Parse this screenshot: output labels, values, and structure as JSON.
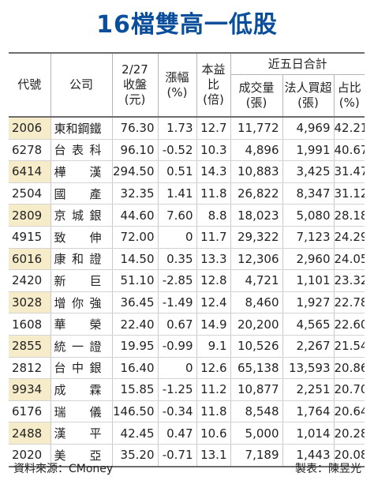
{
  "title": "16檔雙高一低股",
  "header": {
    "code": "代號",
    "company": "公司",
    "close_l1": "2/27",
    "close_l2": "收盤",
    "close_l3": "(元)",
    "change_l1": "漲幅",
    "change_l2": "(%)",
    "pe_l1": "本益",
    "pe_l2": "比",
    "pe_l3": "(倍)",
    "group": "近五日合計",
    "volume_l1": "成交量",
    "volume_l2": "(張)",
    "inst_l1": "法人買超",
    "inst_l2": "(張)",
    "ratio_l1": "占比",
    "ratio_l2": "(%)"
  },
  "rows": [
    {
      "code": "2006",
      "name": "東和鋼鐵",
      "close": "76.30",
      "change": "1.73",
      "pe": "12.7",
      "volume": "11,772",
      "inst": "4,969",
      "ratio": "42.21"
    },
    {
      "code": "6278",
      "name": "台表科",
      "close": "96.10",
      "change": "-0.52",
      "pe": "10.3",
      "volume": "4,896",
      "inst": "1,991",
      "ratio": "40.67"
    },
    {
      "code": "6414",
      "name": "樺漢",
      "close": "294.50",
      "change": "0.51",
      "pe": "14.3",
      "volume": "10,883",
      "inst": "3,425",
      "ratio": "31.47"
    },
    {
      "code": "2504",
      "name": "國產",
      "close": "32.35",
      "change": "1.41",
      "pe": "11.8",
      "volume": "26,822",
      "inst": "8,347",
      "ratio": "31.12"
    },
    {
      "code": "2809",
      "name": "京城銀",
      "close": "44.60",
      "change": "7.60",
      "pe": "8.8",
      "volume": "18,023",
      "inst": "5,080",
      "ratio": "28.18"
    },
    {
      "code": "4915",
      "name": "致伸",
      "close": "72.00",
      "change": "0",
      "pe": "11.7",
      "volume": "29,322",
      "inst": "7,123",
      "ratio": "24.29"
    },
    {
      "code": "6016",
      "name": "康和證",
      "close": "14.50",
      "change": "0.35",
      "pe": "13.3",
      "volume": "12,306",
      "inst": "2,960",
      "ratio": "24.05"
    },
    {
      "code": "2420",
      "name": "新巨",
      "close": "51.10",
      "change": "-2.85",
      "pe": "12.8",
      "volume": "4,721",
      "inst": "1,101",
      "ratio": "23.32"
    },
    {
      "code": "3028",
      "name": "增你強",
      "close": "36.45",
      "change": "-1.49",
      "pe": "12.4",
      "volume": "8,460",
      "inst": "1,927",
      "ratio": "22.78"
    },
    {
      "code": "1608",
      "name": "華榮",
      "close": "22.40",
      "change": "0.67",
      "pe": "14.9",
      "volume": "20,200",
      "inst": "4,565",
      "ratio": "22.60"
    },
    {
      "code": "2855",
      "name": "統一證",
      "close": "19.95",
      "change": "-0.99",
      "pe": "9.1",
      "volume": "10,526",
      "inst": "2,267",
      "ratio": "21.54"
    },
    {
      "code": "2812",
      "name": "台中銀",
      "close": "16.40",
      "change": "0",
      "pe": "12.6",
      "volume": "65,138",
      "inst": "13,593",
      "ratio": "20.86"
    },
    {
      "code": "9934",
      "name": "成霖",
      "close": "15.85",
      "change": "-1.25",
      "pe": "11.2",
      "volume": "10,877",
      "inst": "2,251",
      "ratio": "20.70"
    },
    {
      "code": "6176",
      "name": "瑞儀",
      "close": "146.50",
      "change": "-0.34",
      "pe": "11.8",
      "volume": "8,548",
      "inst": "1,764",
      "ratio": "20.64"
    },
    {
      "code": "2488",
      "name": "漢平",
      "close": "42.45",
      "change": "0.47",
      "pe": "10.6",
      "volume": "5,000",
      "inst": "1,014",
      "ratio": "20.28"
    },
    {
      "code": "2020",
      "name": "美亞",
      "close": "35.20",
      "change": "-0.71",
      "pe": "13.1",
      "volume": "7,189",
      "inst": "1,443",
      "ratio": "20.08"
    }
  ],
  "footer": {
    "source": "資料來源：CMoney",
    "credit": "製表：陳昱光"
  }
}
